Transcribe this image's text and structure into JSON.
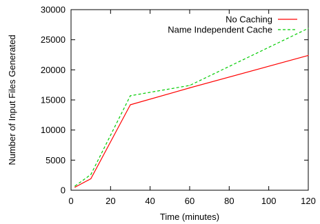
{
  "chart_data": {
    "type": "line",
    "title": "",
    "xlabel": "Time (minutes)",
    "ylabel": "Number of Input Files Generated",
    "xlim": [
      0,
      120
    ],
    "ylim": [
      0,
      30000
    ],
    "xticks": [
      0,
      20,
      40,
      60,
      80,
      100,
      120
    ],
    "yticks": [
      0,
      5000,
      10000,
      15000,
      20000,
      25000,
      30000
    ],
    "grid": false,
    "legend_position": "top-right",
    "series": [
      {
        "name": "No Caching",
        "color": "#ff0000",
        "dash": "solid",
        "x": [
          2,
          10,
          30,
          60,
          120
        ],
        "y": [
          500,
          1900,
          14200,
          17000,
          22400
        ]
      },
      {
        "name": "Name Independent Cache",
        "color": "#00cc00",
        "dash": "dashed",
        "x": [
          2,
          10,
          30,
          60,
          120
        ],
        "y": [
          700,
          2600,
          15700,
          17400,
          26900
        ]
      }
    ]
  }
}
